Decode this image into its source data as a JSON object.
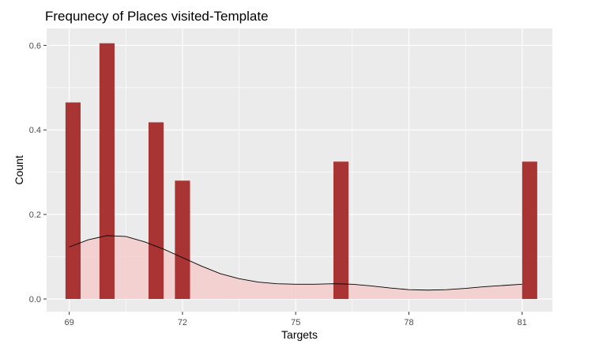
{
  "chart_data": {
    "type": "bar",
    "title": "Frequnecy of Places visited-Template",
    "xlabel": "Targets",
    "ylabel": "Count",
    "xlim": [
      68.4,
      81.8
    ],
    "ylim": [
      -0.03,
      0.64
    ],
    "x_ticks": [
      69,
      72,
      75,
      78,
      81
    ],
    "x_tick_labels": [
      "69",
      "72",
      "75",
      "78",
      "81"
    ],
    "y_ticks": [
      0.0,
      0.2,
      0.4,
      0.6
    ],
    "y_tick_labels": [
      "0.0",
      "0.2",
      "0.4",
      "0.6"
    ],
    "grid": true,
    "panel_background": "#ebebeb",
    "bar_color": "#a52a2a",
    "density_fill_color": "#f4cccc",
    "density_line_color": "#000000",
    "bar_width": 0.4,
    "bars": [
      {
        "x": 69.1,
        "value": 0.465
      },
      {
        "x": 70.0,
        "value": 0.605
      },
      {
        "x": 71.3,
        "value": 0.418
      },
      {
        "x": 72.0,
        "value": 0.28
      },
      {
        "x": 76.2,
        "value": 0.325
      },
      {
        "x": 81.2,
        "value": 0.325
      }
    ],
    "density": {
      "x": [
        69.0,
        69.5,
        70.0,
        70.5,
        71.0,
        71.5,
        72.0,
        72.5,
        73.0,
        73.5,
        74.0,
        74.5,
        75.0,
        75.5,
        76.0,
        76.5,
        77.0,
        77.5,
        78.0,
        78.5,
        79.0,
        79.5,
        80.0,
        80.5,
        81.0
      ],
      "y": [
        0.123,
        0.14,
        0.15,
        0.148,
        0.135,
        0.118,
        0.098,
        0.078,
        0.06,
        0.048,
        0.04,
        0.036,
        0.035,
        0.035,
        0.036,
        0.035,
        0.031,
        0.026,
        0.022,
        0.021,
        0.022,
        0.025,
        0.029,
        0.032,
        0.035
      ]
    }
  }
}
